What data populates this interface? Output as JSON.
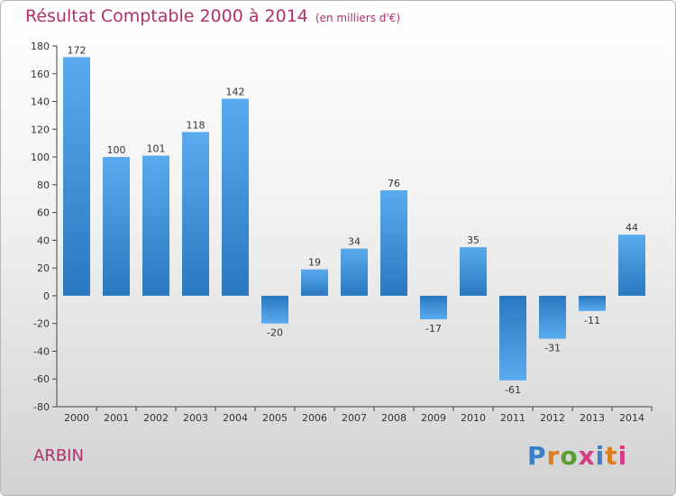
{
  "title": "Résultat Comptable 2000 à 2014",
  "unit": "(en milliers d'€)",
  "commune": "ARBIN",
  "logo": {
    "text": "Proxiti",
    "colors": [
      "#3a7fc8",
      "#e07b1e",
      "#5a9e2f",
      "#d63b86",
      "#3a7fc8",
      "#e07b1e",
      "#d63b86"
    ]
  },
  "chart_data": {
    "type": "bar",
    "categories": [
      "2000",
      "2001",
      "2002",
      "2003",
      "2004",
      "2005",
      "2006",
      "2007",
      "2008",
      "2009",
      "2010",
      "2011",
      "2012",
      "2013",
      "2014"
    ],
    "values": [
      172,
      100,
      101,
      118,
      142,
      -20,
      19,
      34,
      76,
      -17,
      35,
      -61,
      -31,
      -11,
      44
    ],
    "value_labels": [
      "172",
      "100",
      "101",
      "118",
      "142",
      "-20",
      "19",
      "34",
      "76",
      "-17",
      "35",
      "-61",
      "-31",
      "-11",
      "44"
    ],
    "ylim": [
      -80,
      180
    ],
    "yticks": [
      -80,
      -60,
      -40,
      -20,
      0,
      20,
      40,
      60,
      80,
      100,
      120,
      140,
      160,
      180
    ],
    "grid": false,
    "bar_color": "#3d8ed8"
  }
}
